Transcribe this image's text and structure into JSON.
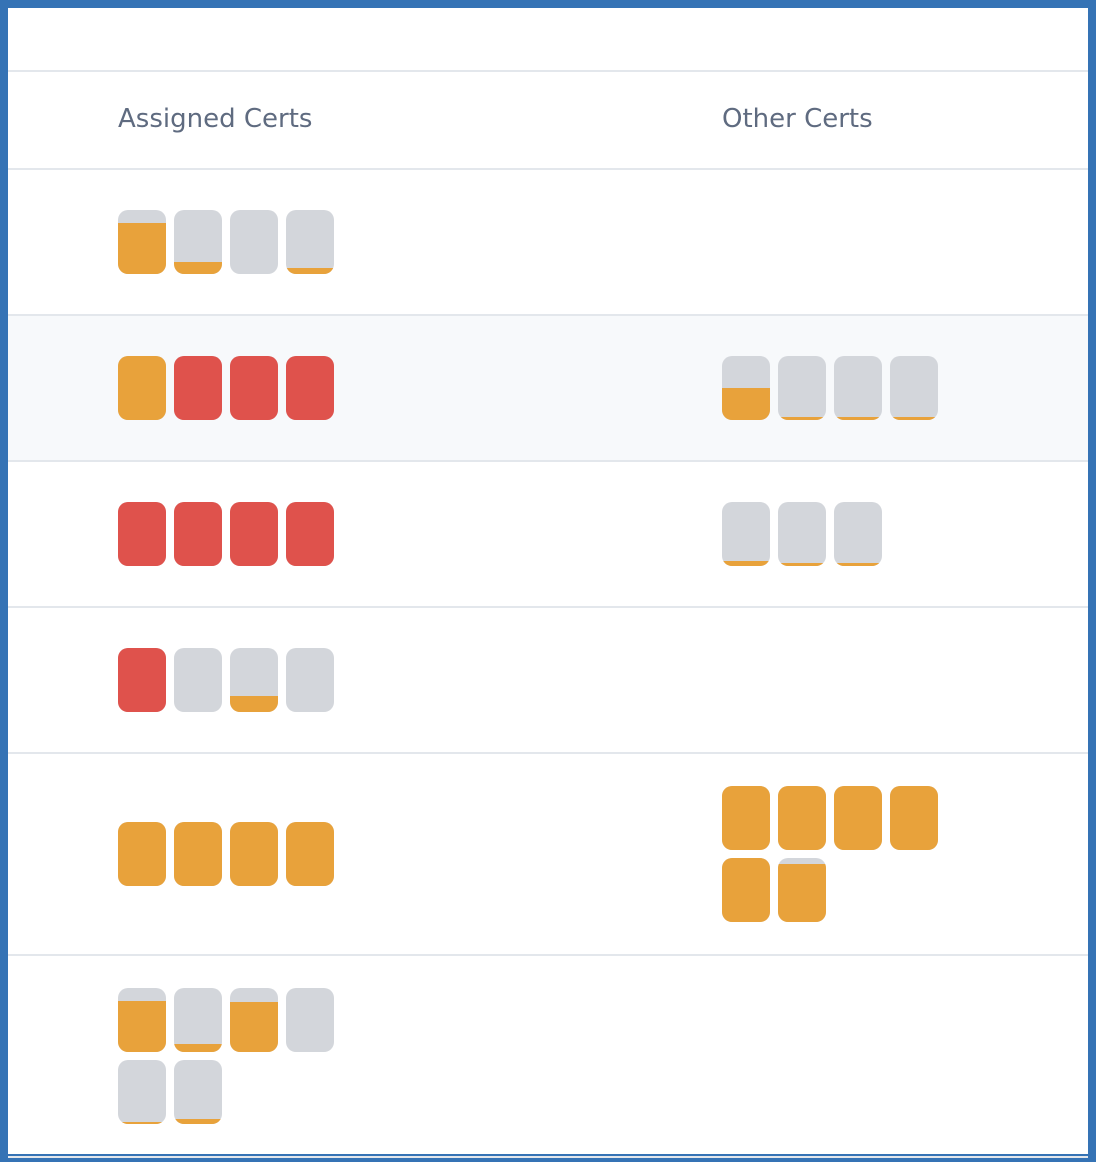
{
  "header": {
    "assigned_label": "Assigned Certs",
    "other_label": "Other Certs"
  },
  "colors": {
    "orange": "#e8a23b",
    "red": "#df524c",
    "empty": "#d3d6db",
    "highlight_row": "#f7f9fb",
    "frame": "#3573b5"
  },
  "rows": [
    {
      "highlight": false,
      "assigned": [
        {
          "color": "orange",
          "level": 0.8
        },
        {
          "color": "orange",
          "level": 0.19
        },
        {
          "color": "orange",
          "level": 0
        },
        {
          "color": "orange",
          "level": 0.09
        }
      ],
      "other": []
    },
    {
      "highlight": true,
      "assigned": [
        {
          "color": "orange",
          "level": 1
        },
        {
          "color": "red",
          "level": 1
        },
        {
          "color": "red",
          "level": 1
        },
        {
          "color": "red",
          "level": 1
        }
      ],
      "other": [
        {
          "color": "orange",
          "level": 0.5
        },
        {
          "color": "orange",
          "level": 0.04
        },
        {
          "color": "orange",
          "level": 0.04
        },
        {
          "color": "orange",
          "level": 0.04
        }
      ]
    },
    {
      "highlight": false,
      "assigned": [
        {
          "color": "red",
          "level": 1
        },
        {
          "color": "red",
          "level": 1
        },
        {
          "color": "red",
          "level": 1
        },
        {
          "color": "red",
          "level": 1
        }
      ],
      "other": [
        {
          "color": "orange",
          "level": 0.08
        },
        {
          "color": "orange",
          "level": 0.04
        },
        {
          "color": "orange",
          "level": 0.04
        }
      ]
    },
    {
      "highlight": false,
      "assigned": [
        {
          "color": "red",
          "level": 1
        },
        {
          "color": "orange",
          "level": 0
        },
        {
          "color": "orange",
          "level": 0.25
        },
        {
          "color": "orange",
          "level": 0
        }
      ],
      "other": []
    },
    {
      "highlight": false,
      "assigned": [
        {
          "color": "orange",
          "level": 1
        },
        {
          "color": "orange",
          "level": 1
        },
        {
          "color": "orange",
          "level": 1
        },
        {
          "color": "orange",
          "level": 1
        }
      ],
      "other": [
        {
          "color": "orange",
          "level": 1
        },
        {
          "color": "orange",
          "level": 1
        },
        {
          "color": "orange",
          "level": 1
        },
        {
          "color": "orange",
          "level": 1
        },
        {
          "color": "orange",
          "level": 1
        },
        {
          "color": "orange",
          "level": 0.9
        }
      ]
    },
    {
      "highlight": false,
      "assigned": [
        {
          "color": "orange",
          "level": 0.8
        },
        {
          "color": "orange",
          "level": 0.12
        },
        {
          "color": "orange",
          "level": 0.78
        },
        {
          "color": "orange",
          "level": 0
        },
        {
          "color": "orange",
          "level": 0.03
        },
        {
          "color": "orange",
          "level": 0.08
        }
      ],
      "other": []
    }
  ]
}
